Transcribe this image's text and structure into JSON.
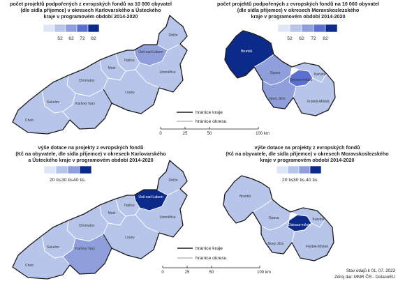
{
  "colors": {
    "c1": "#dde6f6",
    "c2": "#b7c5ea",
    "c3": "#8f9fdb",
    "c4": "#5a6fcf",
    "c5": "#0c2a8a",
    "region_border": "#1a1a1a",
    "district_border": "#9a9a9a"
  },
  "map_tl": {
    "title_lines": [
      "počet projektů podpořených z evropských fondů na 10 000 obyvatel",
      "(dle sídla příjemce) v okresech Karlovarského a Ústeckého",
      "kraje v programovém období 2014-2020"
    ],
    "legend_ticks": [
      "52",
      "62",
      "72",
      "82"
    ],
    "districts": [
      {
        "name": "Děčín",
        "cls": "c2"
      },
      {
        "name": "Ústí nad Labem",
        "cls": "c3"
      },
      {
        "name": "Teplice",
        "cls": "c2"
      },
      {
        "name": "Most",
        "cls": "c2"
      },
      {
        "name": "Litoměřice",
        "cls": "c2"
      },
      {
        "name": "Chomutov",
        "cls": "c2"
      },
      {
        "name": "Louny",
        "cls": "c2"
      },
      {
        "name": "Sokolov",
        "cls": "c2"
      },
      {
        "name": "Karlovy Vary",
        "cls": "c2"
      },
      {
        "name": "Cheb",
        "cls": "c2"
      }
    ]
  },
  "map_tr": {
    "title_lines": [
      "počet projektů podpořených z evropských fondů na 10 000 obyvatel",
      "(dle sídla příjemce) v okresech Moravskoslezského",
      "kraje v programovém období 2014-2020"
    ],
    "legend_ticks": [
      "52",
      "62",
      "72",
      "82"
    ],
    "districts": [
      {
        "name": "Bruntál",
        "cls": "c5"
      },
      {
        "name": "Opava",
        "cls": "c3"
      },
      {
        "name": "Ostrava-město",
        "cls": "c4"
      },
      {
        "name": "Karviná",
        "cls": "c2"
      },
      {
        "name": "Nový Jičín",
        "cls": "c3"
      },
      {
        "name": "Frýdek-Místek",
        "cls": "c2"
      }
    ]
  },
  "map_bl": {
    "title_lines": [
      "výše dotace na projekty z evropských fondů",
      "(Kč na obyvatele, dle sídla příjemce) v okresech Karlovarského",
      "a Ústeckého kraje v programovém období 2014-2020"
    ],
    "legend_ticks": [
      "20 tis.",
      "30 tis.",
      "40 tis."
    ],
    "districts": [
      {
        "name": "Děčín",
        "cls": "c2"
      },
      {
        "name": "Ústí nad Labem",
        "cls": "c5"
      },
      {
        "name": "Teplice",
        "cls": "c2"
      },
      {
        "name": "Most",
        "cls": "c2"
      },
      {
        "name": "Litoměřice",
        "cls": "c2"
      },
      {
        "name": "Chomutov",
        "cls": "c2"
      },
      {
        "name": "Louny",
        "cls": "c2"
      },
      {
        "name": "Sokolov",
        "cls": "c2"
      },
      {
        "name": "Karlovy Vary",
        "cls": "c3"
      },
      {
        "name": "Cheb",
        "cls": "c2"
      }
    ]
  },
  "map_br": {
    "title_lines": [
      "výše dotace na projekty z evropských fondů",
      "(Kč na obyvatele, dle sídla příjemce) v okresech Moravskoslezského",
      "kraje v programovém období 2014-2020"
    ],
    "legend_ticks": [
      "20 tis.",
      "30 tis.",
      "40 tis."
    ],
    "districts": [
      {
        "name": "Bruntál",
        "cls": "c2"
      },
      {
        "name": "Opava",
        "cls": "c2"
      },
      {
        "name": "Ostrava-město",
        "cls": "c5"
      },
      {
        "name": "Karviná",
        "cls": "c2"
      },
      {
        "name": "Nový Jičín",
        "cls": "c2"
      },
      {
        "name": "Frýdek-Místek",
        "cls": "c2"
      }
    ]
  },
  "boundary_legend_top": {
    "region": "hranice kraje",
    "district": "hranice okresu"
  },
  "boundary_legend_bottom": {
    "region": "hranice kraje",
    "district": "hranice okresu"
  },
  "scale_bar": {
    "ticks": [
      "0",
      "25",
      "50",
      "100 km"
    ]
  },
  "source": {
    "status": "Stav údajů k 01. 07. 2023",
    "source": "Zdroj dat: MMR ČR - DotaceEU"
  }
}
